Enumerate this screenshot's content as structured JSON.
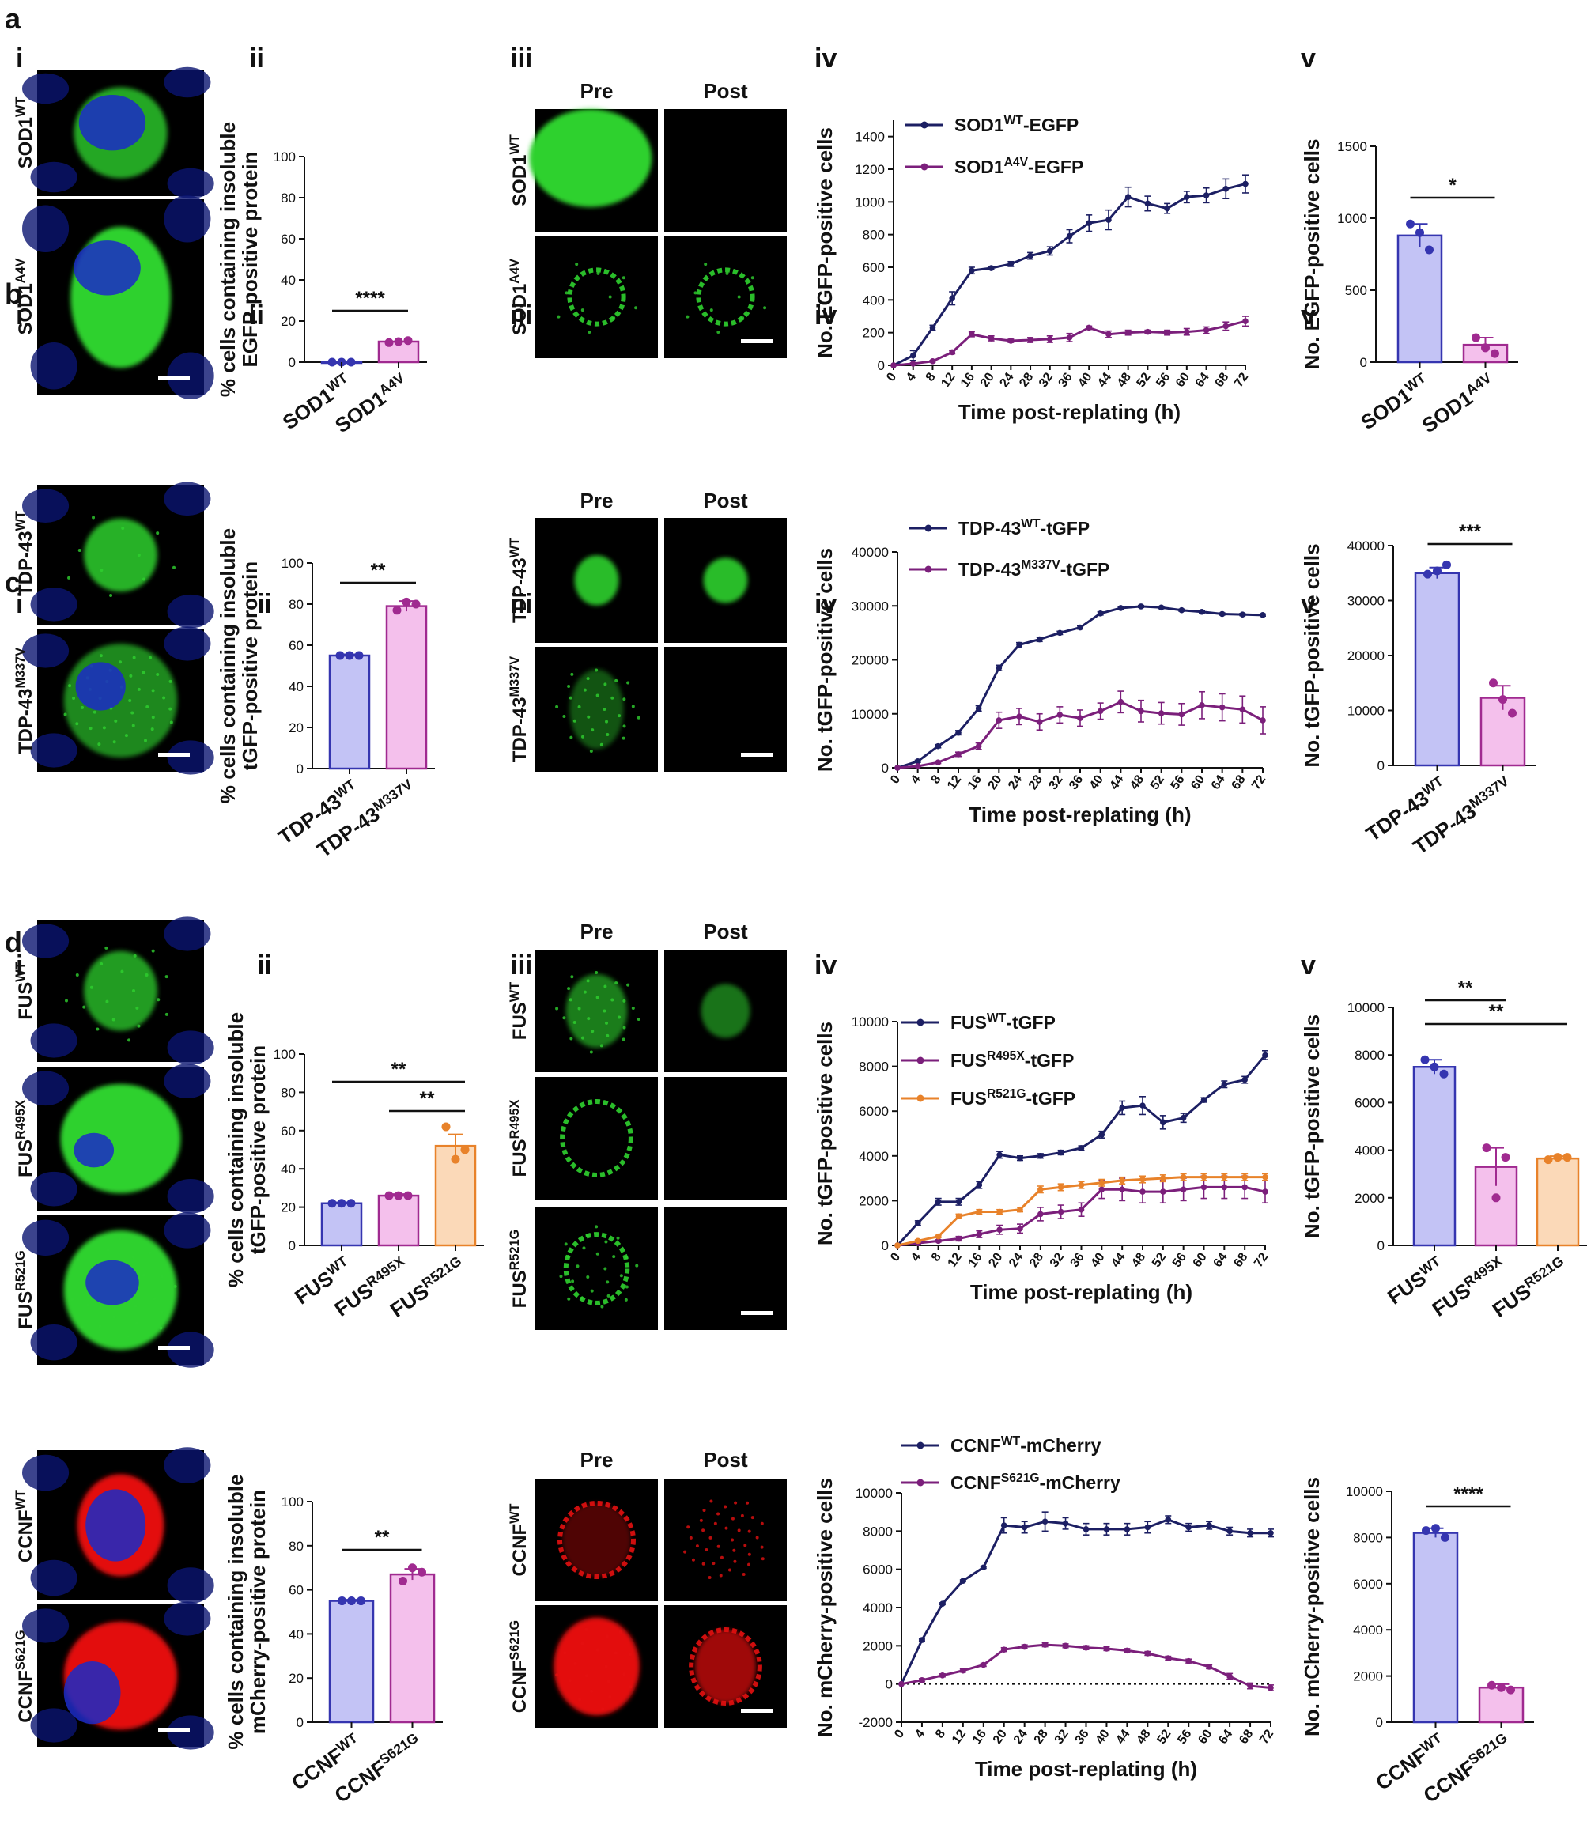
{
  "sections": [
    "a",
    "b",
    "c",
    "d"
  ],
  "panel_labels": [
    "i",
    "ii",
    "iii",
    "iv",
    "v"
  ],
  "pre_label": "Pre",
  "post_label": "Post",
  "micro_labels": {
    "a_i": [
      "SOD1WT",
      "SOD1A4V"
    ],
    "a_iii": [
      "SOD1WT",
      "SOD1A4V"
    ],
    "b_i": [
      "TDP-43WT",
      "TDP-43M337V"
    ],
    "b_iii": [
      "TDP-43WT",
      "TDP-43M337V"
    ],
    "c_i": [
      "FUSWT",
      "FUSR495X",
      "FUSR521G"
    ],
    "c_iii": [
      "FUSWT",
      "FUSR495X",
      "FUSR521G"
    ],
    "d_i": [
      "CCNFWT",
      "CCNFS621G"
    ],
    "d_iii": [
      "CCNFWT",
      "CCNFS621G"
    ]
  },
  "colors": {
    "navy": "#1c1f63",
    "purple": "#7b1f7b",
    "orange": "#e8822a",
    "bar_blue": "#c3c3f5",
    "bar_blue_edge": "#3535b0",
    "bar_pink": "#f4c0ec",
    "bar_pink_edge": "#a02a90",
    "bar_orange": "#fbd9b8",
    "bar_orange_edge": "#e8822a",
    "green": "#2fd12f",
    "red": "#e31010",
    "nucleus": "#1b2bc7"
  },
  "chart_data": [
    {
      "id": "a_ii",
      "type": "bar",
      "categories": [
        "SOD1WT",
        "SOD1A4V"
      ],
      "values": [
        0,
        10
      ],
      "points": [
        [
          0,
          0,
          0
        ],
        [
          9.5,
          10,
          10.5
        ]
      ],
      "ylabel": "% cells containing insoluble EGFP-positive protein",
      "ylim": [
        0,
        100
      ],
      "yticks": [
        0,
        20,
        40,
        60,
        80,
        100
      ],
      "significance": [
        {
          "from": 0,
          "to": 1,
          "label": "****"
        }
      ]
    },
    {
      "id": "a_iv",
      "type": "line",
      "x": [
        0,
        4,
        8,
        12,
        16,
        20,
        24,
        28,
        32,
        36,
        40,
        44,
        48,
        52,
        56,
        60,
        64,
        68,
        72
      ],
      "xlabel": "Time post-replating (h)",
      "ylabel": "No. EGFP-positive cells",
      "ylim": [
        0,
        1500
      ],
      "yticks": [
        0,
        200,
        400,
        600,
        800,
        1000,
        1200,
        1400
      ],
      "series": [
        {
          "name": "SOD1WT-EGFP",
          "values": [
            0,
            60,
            230,
            410,
            580,
            595,
            620,
            670,
            700,
            790,
            870,
            890,
            1030,
            990,
            960,
            1030,
            1040,
            1080,
            1110
          ],
          "err": [
            0,
            30,
            15,
            40,
            20,
            10,
            15,
            20,
            25,
            40,
            50,
            60,
            60,
            45,
            30,
            35,
            45,
            60,
            55
          ]
        },
        {
          "name": "SOD1A4V-EGFP",
          "values": [
            0,
            10,
            25,
            80,
            190,
            165,
            150,
            155,
            160,
            170,
            230,
            190,
            200,
            205,
            200,
            205,
            215,
            240,
            270
          ],
          "err": [
            0,
            5,
            5,
            10,
            15,
            15,
            10,
            15,
            20,
            25,
            10,
            20,
            15,
            10,
            15,
            20,
            20,
            25,
            30
          ]
        }
      ]
    },
    {
      "id": "a_v",
      "type": "bar",
      "categories": [
        "SOD1WT",
        "SOD1A4V"
      ],
      "values": [
        880,
        120
      ],
      "err": [
        80,
        50
      ],
      "points": [
        [
          960,
          900,
          780
        ],
        [
          170,
          100,
          60
        ]
      ],
      "ylabel": "No. EGFP-positive cells",
      "ylim": [
        0,
        1500
      ],
      "yticks": [
        0,
        500,
        1000,
        1500
      ],
      "significance": [
        {
          "from": 0,
          "to": 1,
          "label": "*"
        }
      ]
    },
    {
      "id": "b_ii",
      "type": "bar",
      "categories": [
        "TDP-43WT",
        "TDP-43M337V"
      ],
      "values": [
        55,
        79
      ],
      "err": [
        0.6,
        2.5
      ],
      "points": [
        [
          55,
          55,
          55
        ],
        [
          77,
          81,
          80
        ]
      ],
      "ylabel": "% cells containing insoluble tGFP-positive protein",
      "ylim": [
        0,
        100
      ],
      "yticks": [
        0,
        20,
        40,
        60,
        80,
        100
      ],
      "significance": [
        {
          "from": 0,
          "to": 1,
          "label": "**"
        }
      ]
    },
    {
      "id": "b_iv",
      "type": "line",
      "x": [
        0,
        4,
        8,
        12,
        16,
        20,
        24,
        28,
        32,
        36,
        40,
        44,
        48,
        52,
        56,
        60,
        64,
        68,
        72
      ],
      "xlabel": "Time post-replating (h)",
      "ylabel": "No. tGFP-positive cells",
      "ylim": [
        0,
        40000
      ],
      "yticks": [
        0,
        10000,
        20000,
        30000,
        40000
      ],
      "series": [
        {
          "name": "TDP-43WT-tGFP",
          "values": [
            0,
            1200,
            4000,
            6500,
            11000,
            18500,
            22800,
            23800,
            25000,
            26000,
            28600,
            29600,
            29900,
            29700,
            29200,
            28900,
            28500,
            28400,
            28300
          ],
          "err": [
            0,
            200,
            300,
            400,
            500,
            500,
            400,
            400,
            300,
            300,
            300,
            300,
            200,
            200,
            200,
            200,
            200,
            200,
            200
          ]
        },
        {
          "name": "TDP-43M337V-tGFP",
          "values": [
            0,
            300,
            1000,
            2500,
            4000,
            8800,
            9500,
            8500,
            9800,
            9200,
            10500,
            12200,
            10500,
            10100,
            9900,
            11600,
            11200,
            10800,
            8800
          ],
          "err": [
            0,
            100,
            200,
            400,
            600,
            1500,
            1500,
            1500,
            1500,
            1500,
            1500,
            2000,
            2000,
            2000,
            2000,
            2500,
            2500,
            2500,
            2500
          ]
        }
      ]
    },
    {
      "id": "b_v",
      "type": "bar",
      "categories": [
        "TDP-43WT",
        "TDP-43M337V"
      ],
      "values": [
        35000,
        12300
      ],
      "err": [
        1000,
        2200
      ],
      "points": [
        [
          34800,
          35400,
          36500
        ],
        [
          15000,
          12000,
          9500
        ]
      ],
      "ylabel": "No. tGFP-positive cells",
      "ylim": [
        0,
        40000
      ],
      "yticks": [
        0,
        10000,
        20000,
        30000,
        40000
      ],
      "significance": [
        {
          "from": 0,
          "to": 1,
          "label": "***"
        }
      ]
    },
    {
      "id": "c_ii",
      "type": "bar",
      "categories": [
        "FUSWT",
        "FUSR495X",
        "FUSR521G"
      ],
      "values": [
        22,
        26,
        52
      ],
      "err": [
        0.5,
        0.8,
        6
      ],
      "points": [
        [
          22,
          22,
          22
        ],
        [
          26,
          26,
          26
        ],
        [
          62,
          45,
          50
        ]
      ],
      "ylabel": "% cells containing insoluble tGFP-positive protein",
      "ylim": [
        0,
        100
      ],
      "yticks": [
        0,
        20,
        40,
        60,
        80,
        100
      ],
      "significance": [
        {
          "from": 0,
          "to": 2,
          "label": "**"
        },
        {
          "from": 1,
          "to": 2,
          "label": "**"
        }
      ]
    },
    {
      "id": "c_iv",
      "type": "line",
      "x": [
        0,
        4,
        8,
        12,
        16,
        20,
        24,
        28,
        32,
        36,
        40,
        44,
        48,
        52,
        56,
        60,
        64,
        68,
        72
      ],
      "xlabel": "Time post-replating (h)",
      "ylabel": "No. tGFP-positive cells",
      "ylim": [
        0,
        10000
      ],
      "yticks": [
        0,
        2000,
        4000,
        6000,
        8000,
        10000
      ],
      "series": [
        {
          "name": "FUSWT-tGFP",
          "values": [
            0,
            1000,
            1950,
            1950,
            2700,
            4050,
            3900,
            4000,
            4150,
            4350,
            4950,
            6150,
            6250,
            5500,
            5700,
            6500,
            7200,
            7400,
            8500
          ],
          "err": [
            0,
            100,
            150,
            150,
            150,
            150,
            100,
            100,
            100,
            100,
            150,
            300,
            400,
            300,
            200,
            100,
            150,
            150,
            200
          ]
        },
        {
          "name": "FUSR495X-tGFP",
          "values": [
            0,
            100,
            200,
            300,
            500,
            700,
            750,
            1400,
            1500,
            1600,
            2500,
            2500,
            2400,
            2400,
            2500,
            2600,
            2600,
            2600,
            2400
          ],
          "err": [
            0,
            50,
            50,
            100,
            150,
            200,
            200,
            300,
            300,
            300,
            400,
            500,
            500,
            500,
            500,
            500,
            500,
            500,
            500
          ]
        },
        {
          "name": "FUSR521G-tGFP",
          "values": [
            0,
            200,
            400,
            1300,
            1500,
            1500,
            1600,
            2500,
            2600,
            2700,
            2800,
            2900,
            2950,
            3000,
            3050,
            3050,
            3050,
            3050,
            3050
          ],
          "err": [
            0,
            50,
            50,
            100,
            100,
            100,
            100,
            150,
            150,
            150,
            150,
            150,
            150,
            150,
            150,
            150,
            150,
            150,
            150
          ]
        }
      ]
    },
    {
      "id": "c_v",
      "type": "bar",
      "categories": [
        "FUSWT",
        "FUSR495X",
        "FUSR521G"
      ],
      "values": [
        7500,
        3300,
        3650
      ],
      "err": [
        300,
        800,
        100
      ],
      "points": [
        [
          7800,
          7500,
          7200
        ],
        [
          4100,
          2000,
          3700
        ],
        [
          3600,
          3700,
          3700
        ]
      ],
      "ylabel": "No. tGFP-positive cells",
      "ylim": [
        0,
        10000
      ],
      "yticks": [
        0,
        2000,
        4000,
        6000,
        8000,
        10000
      ],
      "significance": [
        {
          "from": 0,
          "to": 1,
          "label": "**"
        },
        {
          "from": 0,
          "to": 2,
          "label": "**"
        }
      ]
    },
    {
      "id": "d_ii",
      "type": "bar",
      "categories": [
        "CCNFWT",
        "CCNFS621G"
      ],
      "values": [
        55,
        67
      ],
      "err": [
        0.5,
        2.5
      ],
      "points": [
        [
          55,
          55,
          55
        ],
        [
          64,
          70,
          68
        ]
      ],
      "ylabel": "% cells containing insoluble mCherry-positive protein",
      "ylim": [
        0,
        100
      ],
      "yticks": [
        0,
        20,
        40,
        60,
        80,
        100
      ],
      "significance": [
        {
          "from": 0,
          "to": 1,
          "label": "**"
        }
      ]
    },
    {
      "id": "d_iv",
      "type": "line",
      "x": [
        0,
        4,
        8,
        12,
        16,
        20,
        24,
        28,
        32,
        36,
        40,
        44,
        48,
        52,
        56,
        60,
        64,
        68,
        72
      ],
      "xlabel": "Time post-replating (h)",
      "ylabel": "No. mCherry-positive cells",
      "ylim": [
        -2000,
        10000
      ],
      "yticks": [
        -2000,
        0,
        2000,
        4000,
        6000,
        8000,
        10000
      ],
      "zero_line": "dotted",
      "series": [
        {
          "name": "CCNFWT-mCherry",
          "values": [
            0,
            2300,
            4200,
            5400,
            6100,
            8300,
            8200,
            8500,
            8400,
            8100,
            8100,
            8100,
            8200,
            8600,
            8200,
            8300,
            8000,
            7900,
            7900
          ],
          "err": [
            0,
            50,
            50,
            50,
            50,
            400,
            300,
            500,
            300,
            300,
            300,
            300,
            300,
            200,
            200,
            200,
            200,
            200,
            200
          ]
        },
        {
          "name": "CCNFS621G-mCherry",
          "values": [
            0,
            200,
            450,
            700,
            1000,
            1800,
            1950,
            2050,
            2000,
            1900,
            1850,
            1750,
            1600,
            1350,
            1200,
            900,
            400,
            -100,
            -200
          ],
          "err": [
            0,
            80,
            80,
            80,
            80,
            100,
            100,
            100,
            100,
            100,
            100,
            100,
            100,
            100,
            100,
            100,
            150,
            150,
            150
          ]
        }
      ]
    },
    {
      "id": "d_v",
      "type": "bar",
      "categories": [
        "CCNFWT",
        "CCNFS621G"
      ],
      "values": [
        8200,
        1500
      ],
      "err": [
        200,
        150
      ],
      "points": [
        [
          8300,
          8400,
          8000
        ],
        [
          1600,
          1500,
          1400
        ]
      ],
      "ylabel": "No. mCherry-positive cells",
      "ylim": [
        0,
        10000
      ],
      "yticks": [
        0,
        2000,
        4000,
        6000,
        8000,
        10000
      ],
      "significance": [
        {
          "from": 0,
          "to": 1,
          "label": "****"
        }
      ]
    }
  ]
}
